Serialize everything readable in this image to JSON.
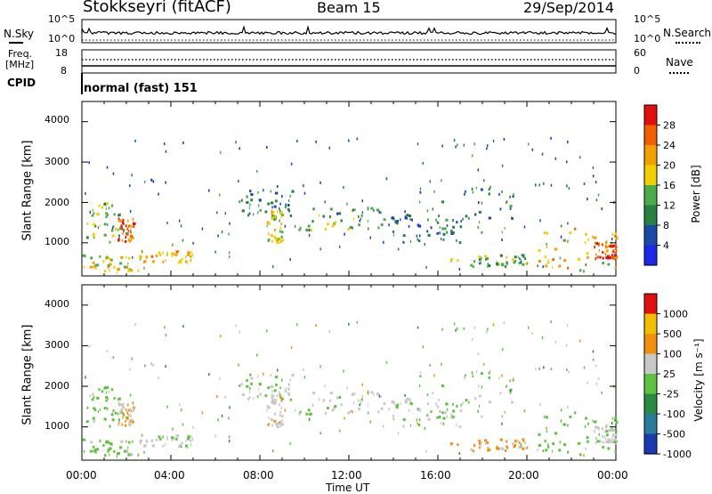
{
  "header": {
    "station": "Stokkseyri (fitACF)",
    "beam": "Beam 15",
    "date": "29/Sep/2014"
  },
  "nsky_panel": {
    "left_label": "N.Sky",
    "left_ticks": [
      "10^5",
      "10^0"
    ],
    "right_ticks": [
      "10^5",
      "10^0"
    ],
    "right_label": "N.Search"
  },
  "freq_panel": {
    "left_label_line1": "Freq.",
    "left_label_line2": "[MHz]",
    "left_ticks": [
      "18",
      "8"
    ],
    "right_ticks": [
      "60",
      "0"
    ],
    "right_label": "Nave"
  },
  "cpid_panel": {
    "label": "CPID",
    "value": "normal (fast) 151"
  },
  "power_panel": {
    "ylabel": "Slant Range [km]",
    "yticks": [
      "4000",
      "3000",
      "2000",
      "1000"
    ],
    "colorbar_label": "Power [dB]",
    "colorbar_ticks": [
      "28",
      "24",
      "20",
      "16",
      "12",
      "8",
      "4"
    ],
    "colors": [
      "#1c28e6",
      "#1a4aa6",
      "#2a8040",
      "#4caa4c",
      "#f0d000",
      "#f0a000",
      "#f06000",
      "#e01010"
    ]
  },
  "velocity_panel": {
    "ylabel": "Slant Range [km]",
    "yticks": [
      "4000",
      "3000",
      "2000",
      "1000"
    ],
    "colorbar_label": "Velocity  [m s⁻¹]",
    "colorbar_ticks": [
      "1000",
      "500",
      "100",
      "25",
      "-25",
      "-100",
      "-500",
      "-1000"
    ],
    "colors": [
      "#1a3ab0",
      "#2a7a9a",
      "#2a8a40",
      "#60c040",
      "#c8c8c8",
      "#f09010",
      "#f0c000",
      "#e01010"
    ]
  },
  "xaxis": {
    "label": "Time UT",
    "ticks": [
      "00:00",
      "04:00",
      "08:00",
      "12:00",
      "16:00",
      "20:00",
      "00:00"
    ]
  },
  "chart_data": {
    "type": "heatmap",
    "title": "Stokkseyri (fitACF)",
    "x_range_hours": [
      0,
      24
    ],
    "y_range_km": [
      180,
      4500
    ],
    "power_range_db": [
      0,
      32
    ],
    "velocity_range_ms": [
      -1200,
      1200
    ],
    "xlabel": "Time UT",
    "ylabel": "Slant Range [km]",
    "regions": [
      {
        "t0": 0.0,
        "t1": 2.0,
        "r0": 1000,
        "r1": 2000,
        "power": 14,
        "velocity": 120
      },
      {
        "t0": 1.6,
        "t1": 2.3,
        "r0": 1000,
        "r1": 1600,
        "power": 26,
        "velocity": -300
      },
      {
        "t0": 0.0,
        "t1": 2.6,
        "r0": 250,
        "r1": 700,
        "power": 18,
        "velocity": 80
      },
      {
        "t0": 2.6,
        "t1": 5.0,
        "r0": 500,
        "r1": 800,
        "power": 20,
        "velocity": 0
      },
      {
        "t0": 7.0,
        "t1": 9.5,
        "r0": 1600,
        "r1": 2300,
        "power": 10,
        "velocity": 0
      },
      {
        "t0": 8.3,
        "t1": 9.0,
        "r0": 1000,
        "r1": 1800,
        "power": 18,
        "velocity": -200
      },
      {
        "t0": 9.5,
        "t1": 13.5,
        "r0": 1300,
        "r1": 1900,
        "power": 12,
        "velocity": 0
      },
      {
        "t0": 13.5,
        "t1": 17.0,
        "r0": 1000,
        "r1": 1700,
        "power": 8,
        "velocity": 0
      },
      {
        "t0": 15.0,
        "t1": 19.5,
        "r0": 1200,
        "r1": 2400,
        "power": 10,
        "velocity": 0
      },
      {
        "t0": 16.5,
        "t1": 20.5,
        "r0": 400,
        "r1": 700,
        "power": 14,
        "velocity": -350
      },
      {
        "t0": 20.5,
        "t1": 24.0,
        "r0": 300,
        "r1": 1400,
        "power": 20,
        "velocity": 150
      },
      {
        "t0": 23.0,
        "t1": 24.0,
        "r0": 600,
        "r1": 1000,
        "power": 26,
        "velocity": -80
      }
    ]
  }
}
